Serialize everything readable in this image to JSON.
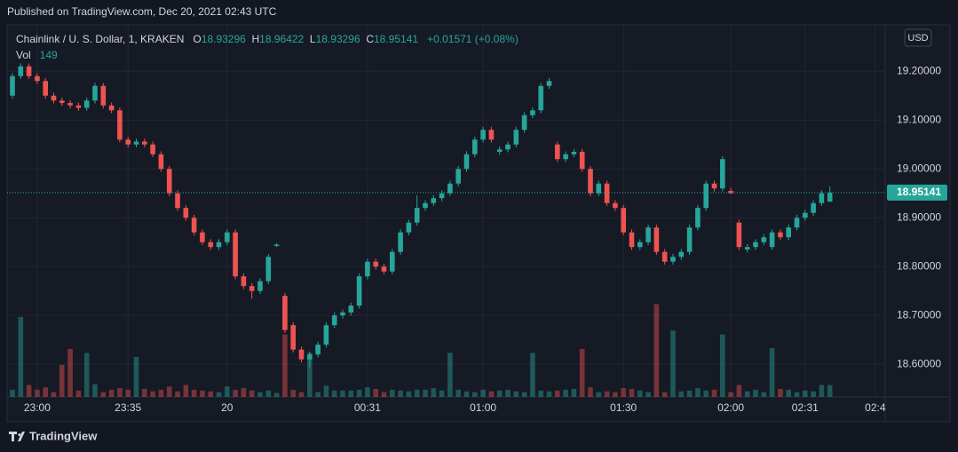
{
  "header": {
    "published": "Published on TradingView.com, Dec 20, 2021 02:43 UTC"
  },
  "footer": {
    "brand": "TradingView"
  },
  "chart_data": {
    "type": "candlestick",
    "symbol": "Chainlink / U. S. Dollar, 1, KRAKEN",
    "currency": "USD",
    "ohlc_legend": [
      {
        "label": "O",
        "value": 18.93296
      },
      {
        "label": "H",
        "value": 18.96422
      },
      {
        "label": "L",
        "value": 18.93296
      },
      {
        "label": "C",
        "value": 18.95141
      }
    ],
    "change": "+0.01571 (+0.08%)",
    "volume_label": "Vol",
    "volume_last": 149,
    "last_price": 18.95141,
    "up_color": "#26a69a",
    "down_color": "#ef5350",
    "grid": true,
    "ylim": [
      18.533,
      19.295
    ],
    "volume_ylim": [
      0,
      4650
    ],
    "yticks": [
      {
        "value": 18.6,
        "label": "18.60000"
      },
      {
        "value": 18.7,
        "label": "18.70000"
      },
      {
        "value": 18.8,
        "label": "18.80000"
      },
      {
        "value": 18.9,
        "label": "18.90000"
      },
      {
        "value": 19.0,
        "label": "19.00000"
      },
      {
        "value": 19.1,
        "label": "19.10000"
      },
      {
        "value": 19.2,
        "label": "19.20000"
      }
    ],
    "xticks": [
      {
        "value": 3,
        "label": "23:00"
      },
      {
        "value": 14,
        "label": "23:35"
      },
      {
        "value": 26,
        "label": "20"
      },
      {
        "value": 43,
        "label": "00:31"
      },
      {
        "value": 57,
        "label": "01:00"
      },
      {
        "value": 74,
        "label": "01:30"
      },
      {
        "value": 87,
        "label": "02:00"
      },
      {
        "value": 96,
        "label": "02:31"
      },
      {
        "value": 104.5,
        "label": "02:4"
      }
    ],
    "ohlc": [
      [
        19.15,
        19.196,
        19.144,
        19.19
      ],
      [
        19.19,
        19.216,
        19.184,
        19.21
      ],
      [
        19.21,
        19.216,
        19.184,
        19.19
      ],
      [
        19.19,
        19.196,
        19.174,
        19.18
      ],
      [
        19.18,
        19.186,
        19.144,
        19.15
      ],
      [
        19.15,
        19.156,
        19.134,
        19.14
      ],
      [
        19.14,
        19.146,
        19.129,
        19.135
      ],
      [
        19.135,
        19.141,
        19.124,
        19.13
      ],
      [
        19.13,
        19.136,
        19.119,
        19.125
      ],
      [
        19.125,
        19.146,
        19.119,
        19.14
      ],
      [
        19.14,
        19.176,
        19.134,
        19.17
      ],
      [
        19.17,
        19.176,
        19.124,
        19.13
      ],
      [
        19.13,
        19.136,
        19.114,
        19.12
      ],
      [
        19.12,
        19.126,
        19.054,
        19.06
      ],
      [
        19.06,
        19.066,
        19.044,
        19.05
      ],
      [
        19.05,
        19.062,
        19.044,
        19.056
      ],
      [
        19.056,
        19.062,
        19.044,
        19.05
      ],
      [
        19.05,
        19.056,
        19.024,
        19.03
      ],
      [
        19.03,
        19.036,
        18.994,
        19.0
      ],
      [
        19.0,
        19.006,
        18.944,
        18.95
      ],
      [
        18.95,
        18.956,
        18.914,
        18.92
      ],
      [
        18.92,
        18.926,
        18.894,
        18.9
      ],
      [
        18.9,
        18.906,
        18.864,
        18.87
      ],
      [
        18.87,
        18.876,
        18.844,
        18.85
      ],
      [
        18.85,
        18.856,
        18.834,
        18.84
      ],
      [
        18.84,
        18.856,
        18.834,
        18.85
      ],
      [
        18.85,
        18.876,
        18.844,
        18.87
      ],
      [
        18.87,
        18.876,
        18.774,
        18.78
      ],
      [
        18.78,
        18.786,
        18.754,
        18.76
      ],
      [
        18.76,
        18.766,
        18.734,
        18.75
      ],
      [
        18.75,
        18.776,
        18.744,
        18.77
      ],
      [
        18.77,
        18.826,
        18.764,
        18.82
      ],
      [
        18.842,
        18.848,
        18.84,
        18.845
      ],
      [
        18.74,
        18.746,
        18.664,
        18.67
      ],
      [
        18.68,
        18.686,
        18.624,
        18.63
      ],
      [
        18.63,
        18.636,
        18.604,
        18.61
      ],
      [
        18.61,
        18.626,
        18.594,
        18.62
      ],
      [
        18.62,
        18.646,
        18.614,
        18.64
      ],
      [
        18.64,
        18.686,
        18.634,
        18.68
      ],
      [
        18.68,
        18.706,
        18.674,
        18.7
      ],
      [
        18.7,
        18.712,
        18.694,
        18.706
      ],
      [
        18.706,
        18.726,
        18.7,
        18.72
      ],
      [
        18.72,
        18.786,
        18.714,
        18.78
      ],
      [
        18.78,
        18.816,
        18.774,
        18.81
      ],
      [
        18.81,
        18.816,
        18.794,
        18.8
      ],
      [
        18.8,
        18.806,
        18.784,
        18.79
      ],
      [
        18.79,
        18.836,
        18.784,
        18.83
      ],
      [
        18.83,
        18.876,
        18.824,
        18.87
      ],
      [
        18.87,
        18.896,
        18.864,
        18.89
      ],
      [
        18.89,
        18.946,
        18.884,
        18.92
      ],
      [
        18.92,
        18.936,
        18.914,
        18.93
      ],
      [
        18.93,
        18.946,
        18.924,
        18.94
      ],
      [
        18.94,
        18.956,
        18.934,
        18.95
      ],
      [
        18.95,
        18.976,
        18.944,
        18.97
      ],
      [
        18.97,
        19.006,
        18.964,
        19.0
      ],
      [
        19.0,
        19.036,
        18.994,
        19.03
      ],
      [
        19.03,
        19.066,
        19.024,
        19.06
      ],
      [
        19.06,
        19.086,
        19.054,
        19.08
      ],
      [
        19.08,
        19.086,
        19.054,
        19.06
      ],
      [
        19.035,
        19.046,
        19.029,
        19.04
      ],
      [
        19.04,
        19.056,
        19.034,
        19.05
      ],
      [
        19.05,
        19.086,
        19.044,
        19.08
      ],
      [
        19.08,
        19.116,
        19.074,
        19.11
      ],
      [
        19.11,
        19.126,
        19.104,
        19.12
      ],
      [
        19.12,
        19.176,
        19.114,
        19.17
      ],
      [
        19.17,
        19.186,
        19.164,
        19.18
      ],
      [
        19.05,
        19.056,
        19.014,
        19.02
      ],
      [
        19.02,
        19.036,
        19.014,
        19.03
      ],
      [
        19.03,
        19.041,
        19.024,
        19.035
      ],
      [
        19.035,
        19.041,
        18.994,
        19.0
      ],
      [
        19.0,
        19.006,
        18.944,
        18.95
      ],
      [
        18.95,
        18.976,
        18.944,
        18.97
      ],
      [
        18.97,
        18.976,
        18.924,
        18.93
      ],
      [
        18.93,
        18.936,
        18.914,
        18.92
      ],
      [
        18.92,
        18.926,
        18.864,
        18.87
      ],
      [
        18.87,
        18.876,
        18.834,
        18.84
      ],
      [
        18.84,
        18.856,
        18.834,
        18.85
      ],
      [
        18.85,
        18.886,
        18.844,
        18.88
      ],
      [
        18.88,
        18.886,
        18.824,
        18.83
      ],
      [
        18.83,
        18.836,
        18.804,
        18.81
      ],
      [
        18.81,
        18.826,
        18.804,
        18.82
      ],
      [
        18.82,
        18.836,
        18.814,
        18.83
      ],
      [
        18.83,
        18.886,
        18.824,
        18.88
      ],
      [
        18.88,
        18.926,
        18.874,
        18.92
      ],
      [
        18.92,
        18.976,
        18.914,
        18.97
      ],
      [
        18.97,
        18.976,
        18.954,
        18.96
      ],
      [
        18.96,
        19.026,
        18.954,
        19.02
      ],
      [
        18.955,
        18.961,
        18.949,
        18.95
      ],
      [
        18.89,
        18.896,
        18.834,
        18.84
      ],
      [
        18.835,
        18.846,
        18.829,
        18.84
      ],
      [
        18.84,
        18.856,
        18.834,
        18.85
      ],
      [
        18.85,
        18.866,
        18.844,
        18.86
      ],
      [
        18.84,
        18.876,
        18.834,
        18.87
      ],
      [
        18.87,
        18.876,
        18.854,
        18.86
      ],
      [
        18.86,
        18.886,
        18.854,
        18.88
      ],
      [
        18.88,
        18.906,
        18.874,
        18.9
      ],
      [
        18.9,
        18.916,
        18.894,
        18.91
      ],
      [
        18.91,
        18.936,
        18.904,
        18.93
      ],
      [
        18.93,
        18.956,
        18.924,
        18.95
      ],
      [
        18.93296,
        18.96422,
        18.93296,
        18.95141
      ]
    ],
    "volume": [
      90,
      1000,
      150,
      90,
      120,
      60,
      400,
      600,
      80,
      550,
      160,
      60,
      90,
      110,
      90,
      500,
      100,
      70,
      90,
      130,
      70,
      150,
      90,
      80,
      70,
      60,
      130,
      90,
      110,
      80,
      60,
      80,
      50,
      780,
      90,
      60,
      550,
      60,
      140,
      80,
      80,
      80,
      90,
      120,
      100,
      60,
      90,
      80,
      70,
      90,
      90,
      110,
      80,
      550,
      90,
      70,
      60,
      90,
      70,
      80,
      90,
      70,
      60,
      550,
      80,
      70,
      80,
      90,
      100,
      600,
      120,
      60,
      70,
      60,
      110,
      100,
      80,
      60,
      1160,
      60,
      830,
      70,
      80,
      110,
      80,
      90,
      780,
      60,
      150,
      70,
      90,
      60,
      610,
      100,
      90,
      60,
      80,
      70,
      150,
      149
    ]
  }
}
